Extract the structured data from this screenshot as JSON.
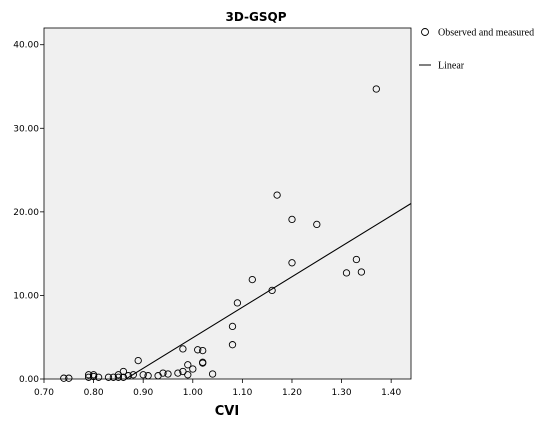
{
  "chart_data": {
    "type": "scatter",
    "title": "3D-GSQP",
    "xlabel": "CVI",
    "ylabel": "",
    "xlim": [
      0.7,
      1.44
    ],
    "ylim": [
      0,
      42
    ],
    "xticks": [
      0.7,
      0.8,
      0.9,
      1.0,
      1.1,
      1.2,
      1.3,
      1.4
    ],
    "xtick_labels": [
      "0.70",
      "0.80",
      "0.90",
      "1.00",
      "1.10",
      "1.20",
      "1.30",
      "1.40"
    ],
    "yticks": [
      0,
      10,
      20,
      30,
      40
    ],
    "ytick_labels": [
      "0.00",
      "10.00",
      "20.00",
      "30.00",
      "40.00"
    ],
    "grid": false,
    "legend_position": "right",
    "series": [
      {
        "name": "Observed and measured",
        "kind": "scatter",
        "marker": "open-circle",
        "points": [
          [
            0.74,
            0.1
          ],
          [
            0.75,
            0.1
          ],
          [
            0.79,
            0.2
          ],
          [
            0.79,
            0.5
          ],
          [
            0.8,
            0.3
          ],
          [
            0.8,
            0.5
          ],
          [
            0.81,
            0.2
          ],
          [
            0.83,
            0.2
          ],
          [
            0.84,
            0.2
          ],
          [
            0.85,
            0.2
          ],
          [
            0.85,
            0.5
          ],
          [
            0.86,
            0.2
          ],
          [
            0.86,
            0.9
          ],
          [
            0.87,
            0.4
          ],
          [
            0.88,
            0.5
          ],
          [
            0.89,
            2.2
          ],
          [
            0.9,
            0.5
          ],
          [
            0.91,
            0.4
          ],
          [
            0.93,
            0.4
          ],
          [
            0.94,
            0.7
          ],
          [
            0.95,
            0.6
          ],
          [
            0.97,
            0.7
          ],
          [
            0.98,
            3.6
          ],
          [
            0.98,
            0.9
          ],
          [
            0.99,
            0.5
          ],
          [
            0.99,
            1.7
          ],
          [
            1.0,
            1.2
          ],
          [
            1.01,
            3.5
          ],
          [
            1.02,
            3.4
          ],
          [
            1.02,
            2.0
          ],
          [
            1.02,
            1.9
          ],
          [
            1.04,
            0.6
          ],
          [
            1.08,
            6.3
          ],
          [
            1.08,
            4.1
          ],
          [
            1.09,
            9.1
          ],
          [
            1.12,
            11.9
          ],
          [
            1.16,
            10.6
          ],
          [
            1.17,
            22.0
          ],
          [
            1.2,
            19.1
          ],
          [
            1.2,
            13.9
          ],
          [
            1.25,
            18.5
          ],
          [
            1.31,
            12.7
          ],
          [
            1.33,
            14.3
          ],
          [
            1.34,
            12.8
          ],
          [
            1.37,
            34.7
          ]
        ]
      },
      {
        "name": "Linear",
        "kind": "line",
        "points": [
          [
            0.865,
            0.0
          ],
          [
            1.44,
            21.0
          ]
        ]
      }
    ],
    "colors": {
      "axis": "#000000",
      "plot_background": "#f0f0f0",
      "marker": "#000000",
      "line": "#000000"
    }
  }
}
